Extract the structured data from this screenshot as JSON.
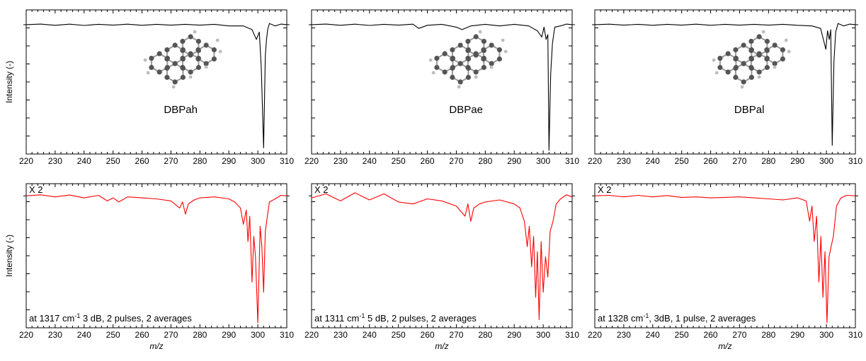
{
  "chart_data": [
    {
      "type": "line",
      "row": "top",
      "col": 0,
      "xlabel": "",
      "ylabel": "Intensity (-)",
      "xlim": [
        220,
        310
      ],
      "xticks": [
        220,
        230,
        240,
        250,
        260,
        270,
        280,
        290,
        300,
        310
      ],
      "ylim": [
        -1.05,
        0.12
      ],
      "line_color": "#000000",
      "molecule_label": "DBPah",
      "multiplier_label": "",
      "annotation": {
        "pre": "",
        "sup": "",
        "post": ""
      },
      "series": [
        {
          "x": [
            220,
            225,
            230,
            235,
            240,
            245,
            250,
            255,
            260,
            265,
            270,
            275,
            280,
            285,
            290,
            295,
            298,
            299.5,
            300.5,
            301.2,
            302,
            302.6,
            303,
            303.4,
            304,
            306,
            308,
            310
          ],
          "y": [
            0,
            0.005,
            -0.005,
            0.004,
            -0.006,
            0.003,
            -0.004,
            0.004,
            -0.005,
            0.003,
            -0.004,
            0.003,
            -0.004,
            0.003,
            -0.01,
            -0.01,
            -0.04,
            -0.12,
            -0.06,
            -0.35,
            -1.0,
            -0.25,
            -0.12,
            -0.04,
            0.01,
            -0.01,
            0.005,
            0
          ]
        }
      ]
    },
    {
      "type": "line",
      "row": "top",
      "col": 1,
      "xlabel": "",
      "ylabel": "",
      "xlim": [
        220,
        310
      ],
      "xticks": [
        220,
        230,
        240,
        250,
        260,
        270,
        280,
        290,
        300,
        310
      ],
      "ylim": [
        -1.05,
        0.12
      ],
      "line_color": "#000000",
      "molecule_label": "DBPae",
      "multiplier_label": "",
      "annotation": {
        "pre": "",
        "sup": "",
        "post": ""
      },
      "series": [
        {
          "x": [
            220,
            225,
            230,
            235,
            240,
            245,
            250,
            255,
            257,
            260,
            265,
            270,
            272,
            275,
            280,
            285,
            290,
            295,
            298,
            299.5,
            300.3,
            301,
            301.6,
            302,
            302.6,
            303.2,
            304,
            306,
            308,
            310
          ],
          "y": [
            0,
            0.005,
            -0.005,
            0.004,
            -0.006,
            0.003,
            -0.004,
            0.004,
            -0.03,
            -0.005,
            0.003,
            -0.02,
            -0.04,
            -0.01,
            0.003,
            -0.01,
            0.003,
            -0.01,
            -0.05,
            -0.1,
            -0.02,
            -0.12,
            -0.08,
            -1.02,
            -0.4,
            -0.15,
            -0.02,
            -0.01,
            0.005,
            0
          ]
        }
      ]
    },
    {
      "type": "line",
      "row": "top",
      "col": 2,
      "xlabel": "",
      "ylabel": "",
      "xlim": [
        220,
        310
      ],
      "xticks": [
        220,
        230,
        240,
        250,
        260,
        270,
        280,
        290,
        300,
        310
      ],
      "ylim": [
        -1.05,
        0.12
      ],
      "line_color": "#000000",
      "molecule_label": "DBPal",
      "multiplier_label": "",
      "annotation": {
        "pre": "",
        "sup": "",
        "post": ""
      },
      "series": [
        {
          "x": [
            220,
            225,
            230,
            235,
            240,
            245,
            250,
            255,
            260,
            265,
            270,
            275,
            280,
            285,
            290,
            295,
            298,
            299.8,
            300.4,
            301,
            301.5,
            302,
            302.6,
            303.2,
            304,
            306,
            308,
            310
          ],
          "y": [
            0,
            0.004,
            -0.004,
            0.003,
            -0.005,
            0.003,
            -0.004,
            0.004,
            -0.005,
            0.003,
            -0.004,
            0.003,
            -0.004,
            0.003,
            -0.005,
            -0.01,
            -0.03,
            -0.2,
            -0.05,
            -0.12,
            -0.04,
            -0.98,
            -0.3,
            -0.06,
            0.01,
            -0.01,
            0.005,
            0
          ]
        }
      ]
    },
    {
      "type": "line",
      "row": "bottom",
      "col": 0,
      "xlabel": "m/z",
      "ylabel": "Intensity (-)",
      "xlim": [
        220,
        310
      ],
      "xticks": [
        220,
        230,
        240,
        250,
        260,
        270,
        280,
        290,
        300,
        310
      ],
      "ylim": [
        -1.3,
        0.12
      ],
      "line_color": "#ff0000",
      "molecule_label": "",
      "multiplier_label": "X 2",
      "annotation": {
        "pre": "at 1317 cm",
        "sup": "-1",
        "post": " 3 dB, 2 pulses, 2 averages"
      },
      "series": [
        {
          "x": [
            220,
            225,
            230,
            235,
            240,
            245,
            248,
            250,
            252,
            255,
            260,
            265,
            270,
            273,
            274,
            275,
            276,
            278,
            280,
            285,
            290,
            292,
            294,
            295,
            296,
            296.6,
            297.2,
            298,
            298.6,
            299.2,
            300,
            300.8,
            301.4,
            302,
            302.6,
            303.4,
            304,
            306,
            308,
            310
          ],
          "y": [
            0,
            0.01,
            -0.01,
            0.008,
            -0.02,
            0.005,
            -0.05,
            -0.02,
            -0.06,
            -0.01,
            -0.02,
            -0.03,
            -0.05,
            -0.12,
            -0.06,
            -0.18,
            -0.08,
            -0.04,
            -0.02,
            -0.01,
            -0.03,
            -0.06,
            -0.12,
            -0.28,
            -0.14,
            -0.45,
            -0.2,
            -0.85,
            -0.4,
            -0.6,
            -1.25,
            -0.3,
            -0.5,
            -0.95,
            -0.35,
            -0.18,
            -0.06,
            -0.03,
            0.005,
            0
          ]
        }
      ]
    },
    {
      "type": "line",
      "row": "bottom",
      "col": 1,
      "xlabel": "m/z",
      "ylabel": "",
      "xlim": [
        220,
        310
      ],
      "xticks": [
        220,
        230,
        240,
        250,
        260,
        270,
        280,
        290,
        300,
        310
      ],
      "ylim": [
        -1.3,
        0.12
      ],
      "line_color": "#ff0000",
      "molecule_label": "",
      "multiplier_label": "X 2",
      "annotation": {
        "pre": "at 1311 cm",
        "sup": "-1",
        "post": " 5 dB, 2 pulses, 2 averages"
      },
      "series": [
        {
          "x": [
            220,
            225,
            230,
            235,
            240,
            245,
            250,
            255,
            260,
            265,
            270,
            273,
            274,
            275,
            276,
            278,
            280,
            285,
            290,
            292,
            293.5,
            294.5,
            295.2,
            296,
            296.7,
            297.4,
            298,
            298.6,
            299.3,
            300,
            300.8,
            301.6,
            302.4,
            303.4,
            304.5,
            306,
            308,
            310
          ],
          "y": [
            -0.02,
            0.02,
            -0.05,
            0.03,
            -0.04,
            0.02,
            -0.06,
            -0.08,
            -0.03,
            -0.05,
            -0.1,
            -0.2,
            -0.08,
            -0.25,
            -0.12,
            -0.08,
            -0.06,
            -0.04,
            -0.08,
            -0.12,
            -0.25,
            -0.5,
            -0.3,
            -0.7,
            -0.4,
            -1.0,
            -0.55,
            -1.22,
            -0.45,
            -0.95,
            -0.6,
            -0.8,
            -0.35,
            -0.25,
            -0.08,
            -0.03,
            0.01,
            -0.01
          ]
        }
      ]
    },
    {
      "type": "line",
      "row": "bottom",
      "col": 2,
      "xlabel": "m/z",
      "ylabel": "",
      "xlim": [
        220,
        310
      ],
      "xticks": [
        220,
        230,
        240,
        250,
        260,
        270,
        280,
        290,
        300,
        310
      ],
      "ylim": [
        -1.3,
        0.12
      ],
      "line_color": "#ff0000",
      "molecule_label": "",
      "multiplier_label": "X 2",
      "annotation": {
        "pre": "at 1328 cm",
        "sup": "-1",
        "post": ", 3dB, 1 pulse, 2 averages"
      },
      "series": [
        {
          "x": [
            220,
            225,
            230,
            235,
            240,
            245,
            250,
            255,
            260,
            265,
            270,
            275,
            280,
            285,
            290,
            293,
            294.2,
            295,
            295.8,
            296.6,
            297.4,
            298.1,
            298.8,
            299.5,
            300.2,
            300.9,
            301.6,
            302.4,
            303.5,
            305,
            307,
            310
          ],
          "y": [
            0,
            0.005,
            -0.01,
            0.005,
            -0.01,
            0.003,
            -0.015,
            -0.01,
            -0.02,
            -0.015,
            -0.01,
            -0.02,
            -0.03,
            -0.04,
            -0.02,
            -0.05,
            -0.25,
            -0.1,
            -0.45,
            -0.2,
            -0.85,
            -0.4,
            -1.0,
            -0.55,
            -1.25,
            -0.6,
            -0.5,
            -0.4,
            -0.1,
            -0.02,
            0.005,
            0
          ]
        }
      ]
    }
  ]
}
